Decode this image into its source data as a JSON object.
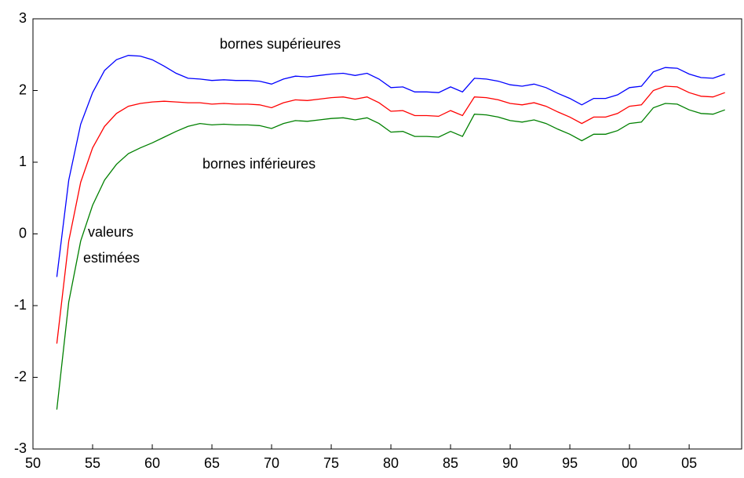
{
  "chart_data": {
    "type": "line",
    "annotations": [
      "bornes supérieures",
      "bornes inférieures",
      "valeurs",
      "estimées"
    ],
    "x": [
      1952,
      1953,
      1954,
      1955,
      1956,
      1957,
      1958,
      1959,
      1960,
      1961,
      1962,
      1963,
      1964,
      1965,
      1966,
      1967,
      1968,
      1969,
      1970,
      1971,
      1972,
      1973,
      1974,
      1975,
      1976,
      1977,
      1978,
      1979,
      1980,
      1981,
      1982,
      1983,
      1984,
      1985,
      1986,
      1987,
      1988,
      1989,
      1990,
      1991,
      1992,
      1993,
      1994,
      1995,
      1996,
      1997,
      1998,
      1999,
      2000,
      2001,
      2002,
      2003,
      2004,
      2005,
      2006,
      2007,
      2008
    ],
    "series": [
      {
        "color": "#0000ff",
        "values": [
          -0.6,
          0.75,
          1.53,
          1.97,
          2.28,
          2.43,
          2.49,
          2.48,
          2.43,
          2.34,
          2.24,
          2.17,
          2.16,
          2.14,
          2.15,
          2.14,
          2.14,
          2.13,
          2.09,
          2.16,
          2.2,
          2.19,
          2.21,
          2.23,
          2.24,
          2.21,
          2.24,
          2.16,
          2.04,
          2.05,
          1.98,
          1.98,
          1.97,
          2.05,
          1.98,
          2.17,
          2.16,
          2.13,
          2.08,
          2.06,
          2.09,
          2.04,
          1.96,
          1.89,
          1.8,
          1.89,
          1.89,
          1.94,
          2.04,
          2.06,
          2.26,
          2.32,
          2.31,
          2.23,
          2.18,
          2.17,
          2.23
        ]
      },
      {
        "color": "#ff0000",
        "values": [
          -1.53,
          -0.1,
          0.72,
          1.2,
          1.5,
          1.68,
          1.78,
          1.82,
          1.84,
          1.85,
          1.84,
          1.83,
          1.83,
          1.81,
          1.82,
          1.81,
          1.81,
          1.8,
          1.76,
          1.83,
          1.87,
          1.86,
          1.88,
          1.9,
          1.91,
          1.88,
          1.91,
          1.83,
          1.71,
          1.72,
          1.65,
          1.65,
          1.64,
          1.72,
          1.65,
          1.91,
          1.9,
          1.87,
          1.82,
          1.8,
          1.83,
          1.78,
          1.7,
          1.63,
          1.54,
          1.63,
          1.63,
          1.68,
          1.78,
          1.8,
          2.0,
          2.06,
          2.05,
          1.97,
          1.92,
          1.91,
          1.97
        ]
      },
      {
        "color": "#008000",
        "values": [
          -2.45,
          -0.95,
          -0.1,
          0.4,
          0.75,
          0.97,
          1.12,
          1.2,
          1.27,
          1.35,
          1.43,
          1.5,
          1.54,
          1.52,
          1.53,
          1.52,
          1.52,
          1.51,
          1.47,
          1.54,
          1.58,
          1.57,
          1.59,
          1.61,
          1.62,
          1.59,
          1.62,
          1.54,
          1.42,
          1.43,
          1.36,
          1.36,
          1.35,
          1.43,
          1.36,
          1.67,
          1.66,
          1.63,
          1.58,
          1.56,
          1.59,
          1.54,
          1.46,
          1.39,
          1.3,
          1.39,
          1.39,
          1.44,
          1.54,
          1.56,
          1.76,
          1.82,
          1.81,
          1.73,
          1.68,
          1.67,
          1.73
        ]
      }
    ],
    "xlim": [
      1950,
      2009.4
    ],
    "xticks": [
      {
        "value": 1950,
        "label": "50"
      },
      {
        "value": 1955,
        "label": "55"
      },
      {
        "value": 1960,
        "label": "60"
      },
      {
        "value": 1965,
        "label": "65"
      },
      {
        "value": 1970,
        "label": "70"
      },
      {
        "value": 1975,
        "label": "75"
      },
      {
        "value": 1980,
        "label": "80"
      },
      {
        "value": 1985,
        "label": "85"
      },
      {
        "value": 1990,
        "label": "90"
      },
      {
        "value": 1995,
        "label": "95"
      },
      {
        "value": 2000,
        "label": "00"
      },
      {
        "value": 2005,
        "label": "05"
      }
    ],
    "ylim": [
      -3,
      3
    ],
    "yticks": [
      -3,
      -2,
      -1,
      0,
      1,
      2,
      3
    ],
    "grid": false
  }
}
